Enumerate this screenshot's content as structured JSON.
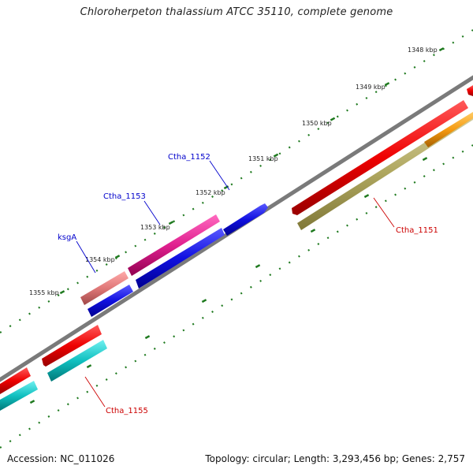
{
  "header": {
    "title": "Chloroherpeton thalassium ATCC 35110, complete genome"
  },
  "footer": {
    "accession": "Accession: NC_011026",
    "summary": "Topology: circular; Length: 3,293,456 bp; Genes: 2,757"
  },
  "colors": {
    "backbone": "#7a7a7a",
    "ticks": "#1f7a1f",
    "forward_blue": "#1010e0",
    "reverse_red": "#ee0000",
    "magenta": "#e0208f",
    "salmon": "#e07878",
    "olive": "#b0a860",
    "cyan": "#10c0c0",
    "orange": "#f59a10",
    "label_blue": "#0000cc",
    "label_red": "#cc0000"
  },
  "scale_labels": [
    "1348 kbp",
    "1349 kbp",
    "1350 kbp",
    "1351 kbp",
    "1352 kbp",
    "1353 kbp",
    "1354 kbp",
    "1355 kbp"
  ],
  "gene_labels": [
    "Ctha_1152",
    "Ctha_1153",
    "ksgA",
    "Ctha_1151",
    "Ctha_1155"
  ]
}
